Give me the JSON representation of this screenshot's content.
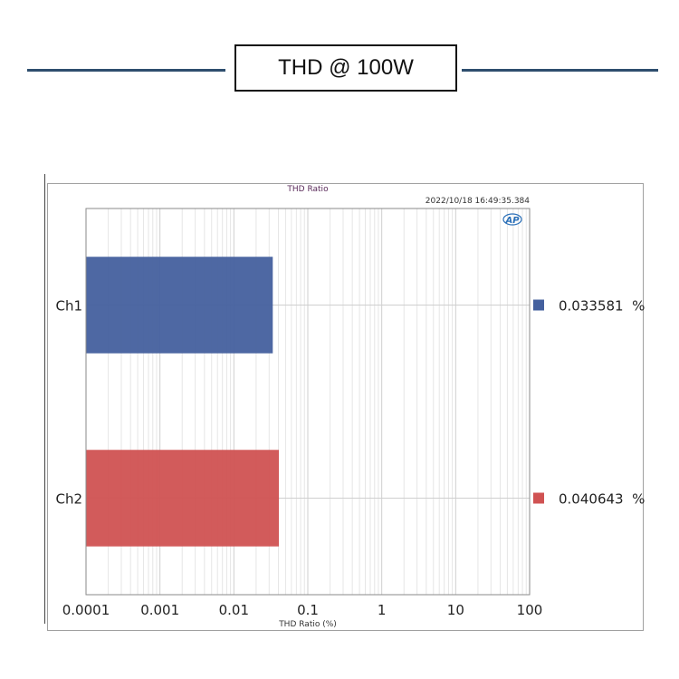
{
  "header": {
    "title": "THD @ 100W"
  },
  "chart_data": {
    "type": "bar",
    "orientation": "horizontal",
    "title": "THD Ratio",
    "timestamp": "2022/10/18 16:49:35.384",
    "logo": "AP",
    "xlabel": "THD Ratio (%)",
    "xscale": "log",
    "xlim": [
      0.0001,
      100
    ],
    "xticks": [
      "0.0001",
      "0.001",
      "0.01",
      "0.1",
      "1",
      "10",
      "100"
    ],
    "categories": [
      "Ch1",
      "Ch2"
    ],
    "values": [
      0.033581,
      0.040643
    ],
    "colors": [
      "#44609e",
      "#d05252"
    ],
    "legend": {
      "position": "right",
      "entries": [
        "0.033581  %",
        "0.040643  %"
      ]
    },
    "grid": true
  }
}
